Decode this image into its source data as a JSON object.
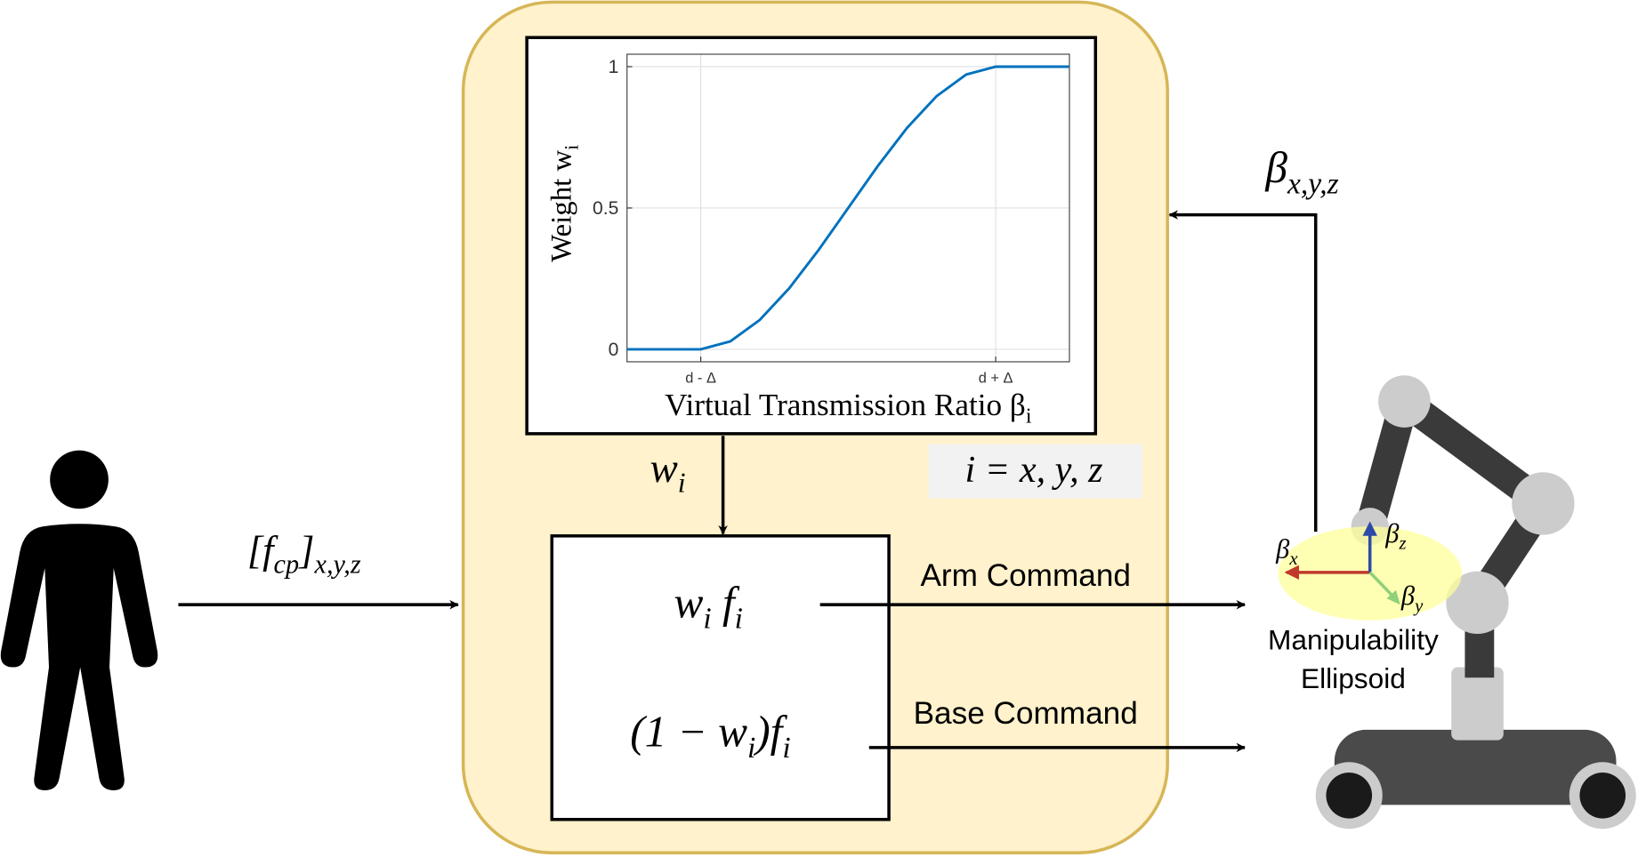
{
  "input_label": [
    {
      "text": "[f"
    },
    {
      "sub": "cp"
    },
    {
      "text": "]"
    },
    {
      "sub": "x,y,z"
    }
  ],
  "feedback_label": [
    {
      "text": "β"
    },
    {
      "sub": "x,y,z"
    }
  ],
  "weight_label": [
    {
      "text": "w"
    },
    {
      "sub": "i"
    }
  ],
  "index_note": "i = x, y, z",
  "arm_expression": [
    {
      "text": "w"
    },
    {
      "sub": "i"
    },
    {
      "text": " f"
    },
    {
      "sub": "i"
    }
  ],
  "base_expression": [
    {
      "text": "(1 − w"
    },
    {
      "sub": "i"
    },
    {
      "text": ")f"
    },
    {
      "sub": "i"
    }
  ],
  "arm_command": "Arm Command",
  "base_command": "Base Command",
  "ellipsoid_label": [
    "Manipulability",
    "Ellipsoid"
  ],
  "robot_axes": {
    "x": [
      {
        "text": "β"
      },
      {
        "sub": "x"
      }
    ],
    "y": [
      {
        "text": "β"
      },
      {
        "sub": "y"
      }
    ],
    "z": [
      {
        "text": "β"
      },
      {
        "sub": "z"
      }
    ]
  },
  "plot": {
    "type": "line",
    "xlabel": [
      {
        "text": "Virtual Transmission Ratio β"
      },
      {
        "sub": "i"
      }
    ],
    "ylabel": [
      {
        "text": "Weight w"
      },
      {
        "sub": "i"
      }
    ],
    "x": [
      -0.25,
      0,
      0.1,
      0.2,
      0.3,
      0.4,
      0.5,
      0.6,
      0.7,
      0.8,
      0.9,
      1,
      1.25
    ],
    "values": [
      0,
      0,
      0.028,
      0.104,
      0.216,
      0.352,
      0.5,
      0.648,
      0.784,
      0.896,
      0.972,
      1,
      1
    ],
    "color": "#0072bd",
    "xlim": [
      -0.25,
      1.25
    ],
    "ylim": [
      -0.044,
      1.044
    ],
    "xticks": [
      {
        "value": 0,
        "label": "d - Δ"
      },
      {
        "value": 1,
        "label": "d + Δ"
      }
    ],
    "yticks": [
      0,
      0.5,
      1
    ],
    "grid": true
  }
}
